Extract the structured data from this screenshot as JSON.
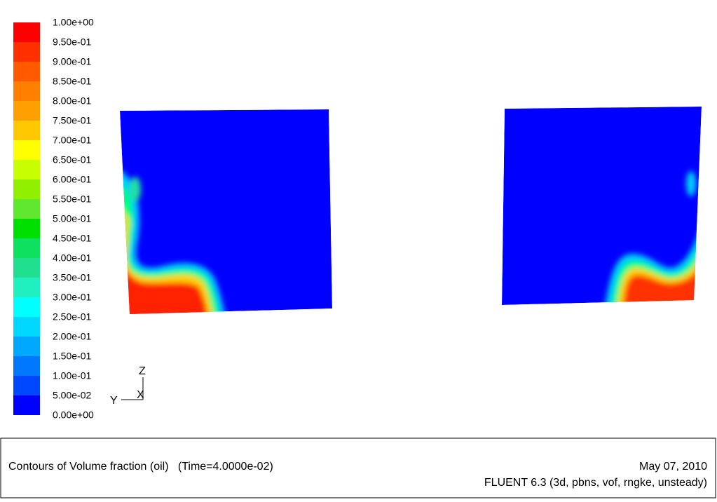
{
  "colorbar": {
    "labels": [
      "1.00e+00",
      "9.50e-01",
      "9.00e-01",
      "8.50e-01",
      "8.00e-01",
      "7.50e-01",
      "7.00e-01",
      "6.50e-01",
      "6.00e-01",
      "5.50e-01",
      "5.00e-01",
      "4.50e-01",
      "4.00e-01",
      "3.50e-01",
      "3.00e-01",
      "2.50e-01",
      "2.00e-01",
      "1.50e-01",
      "1.00e-01",
      "5.00e-02",
      "0.00e+00"
    ],
    "colors": [
      "#ff0000",
      "#ff3000",
      "#ff5a00",
      "#ff8000",
      "#ffa000",
      "#ffc800",
      "#ffff00",
      "#c8ff00",
      "#90f000",
      "#60e830",
      "#00e000",
      "#10e060",
      "#20e090",
      "#20f0c0",
      "#00ffff",
      "#00d8ff",
      "#00a8ff",
      "#0078ff",
      "#0048ff",
      "#0000ff"
    ]
  },
  "axes_triad": {
    "z": "Z",
    "y": "Y",
    "x": "X"
  },
  "footer": {
    "title": "Contours of Volume fraction (oil)   (Time=4.0000e-02)",
    "date": "May 07, 2010",
    "solver": "FLUENT 6.3 (3d, pbns, vof, rngke, unsteady)"
  }
}
